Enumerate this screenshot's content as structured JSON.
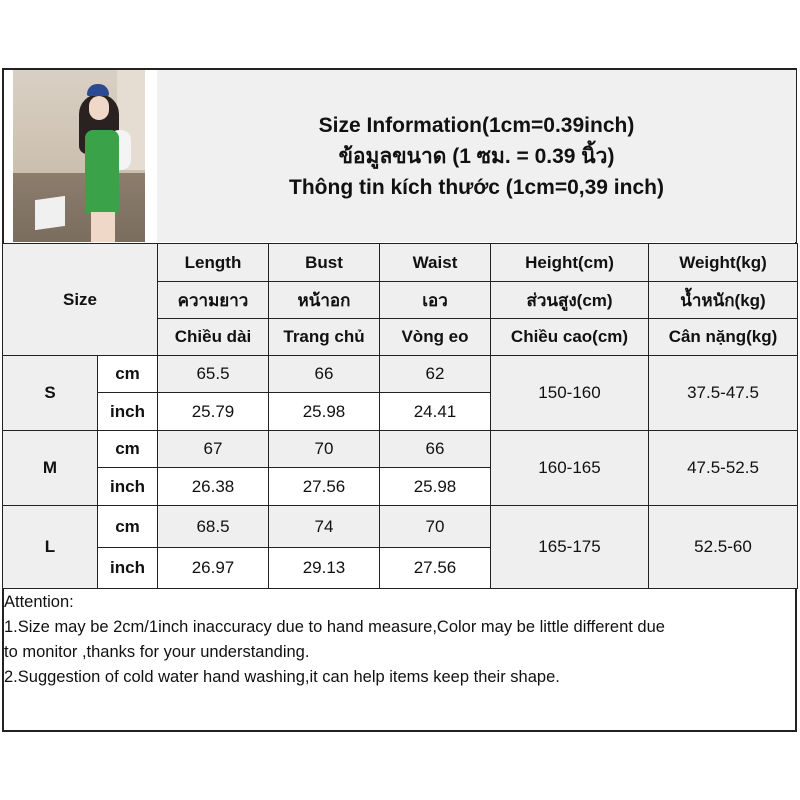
{
  "title_lines": [
    "Size Information(1cm=0.39inch)",
    "ข้อมูลขนาด (1 ซม. = 0.39 นิ้ว)",
    "Thông tin kích thước (1cm=0,39 inch)"
  ],
  "size_label": "Size",
  "headers": [
    [
      "Length",
      "Bust",
      "Waist",
      "Height(cm)",
      "Weight(kg)"
    ],
    [
      "ความยาว",
      "หน้าอก",
      "เอว",
      "ส่วนสูง(cm)",
      "น้ำหนัก(kg)"
    ],
    [
      "Chiều dài",
      "Trang chủ",
      "Vòng eo",
      "Chiều cao(cm)",
      "Cân nặng(kg)"
    ]
  ],
  "rows": [
    {
      "size": "S",
      "cm_label": "cm",
      "inch_label": "inch",
      "cm": [
        "65.5",
        "66",
        "62"
      ],
      "inch": [
        "25.79",
        "25.98",
        "24.41"
      ],
      "height": "150-160",
      "weight": "37.5-47.5"
    },
    {
      "size": "M",
      "cm_label": "cm",
      "inch_label": "inch",
      "cm": [
        "67",
        "70",
        "66"
      ],
      "inch": [
        "26.38",
        "27.56",
        "25.98"
      ],
      "height": "160-165",
      "weight": "47.5-52.5"
    },
    {
      "size": "L",
      "cm_label": "cm",
      "inch_label": "inch",
      "cm": [
        "68.5",
        "74",
        "70"
      ],
      "inch": [
        "26.97",
        "29.13",
        "27.56"
      ],
      "height": "165-175",
      "weight": "52.5-60"
    }
  ],
  "attention": [
    "Attention:",
    "1.Size may be 2cm/1inch inaccuracy due to hand measure,Color may be little different due",
    "to monitor ,thanks for your understanding.",
    "2.Suggestion of cold water hand washing,it can help items keep their shape."
  ],
  "colors": {
    "header_bg": "#efefef",
    "border": "#222222",
    "dress": "#3aa34a"
  }
}
